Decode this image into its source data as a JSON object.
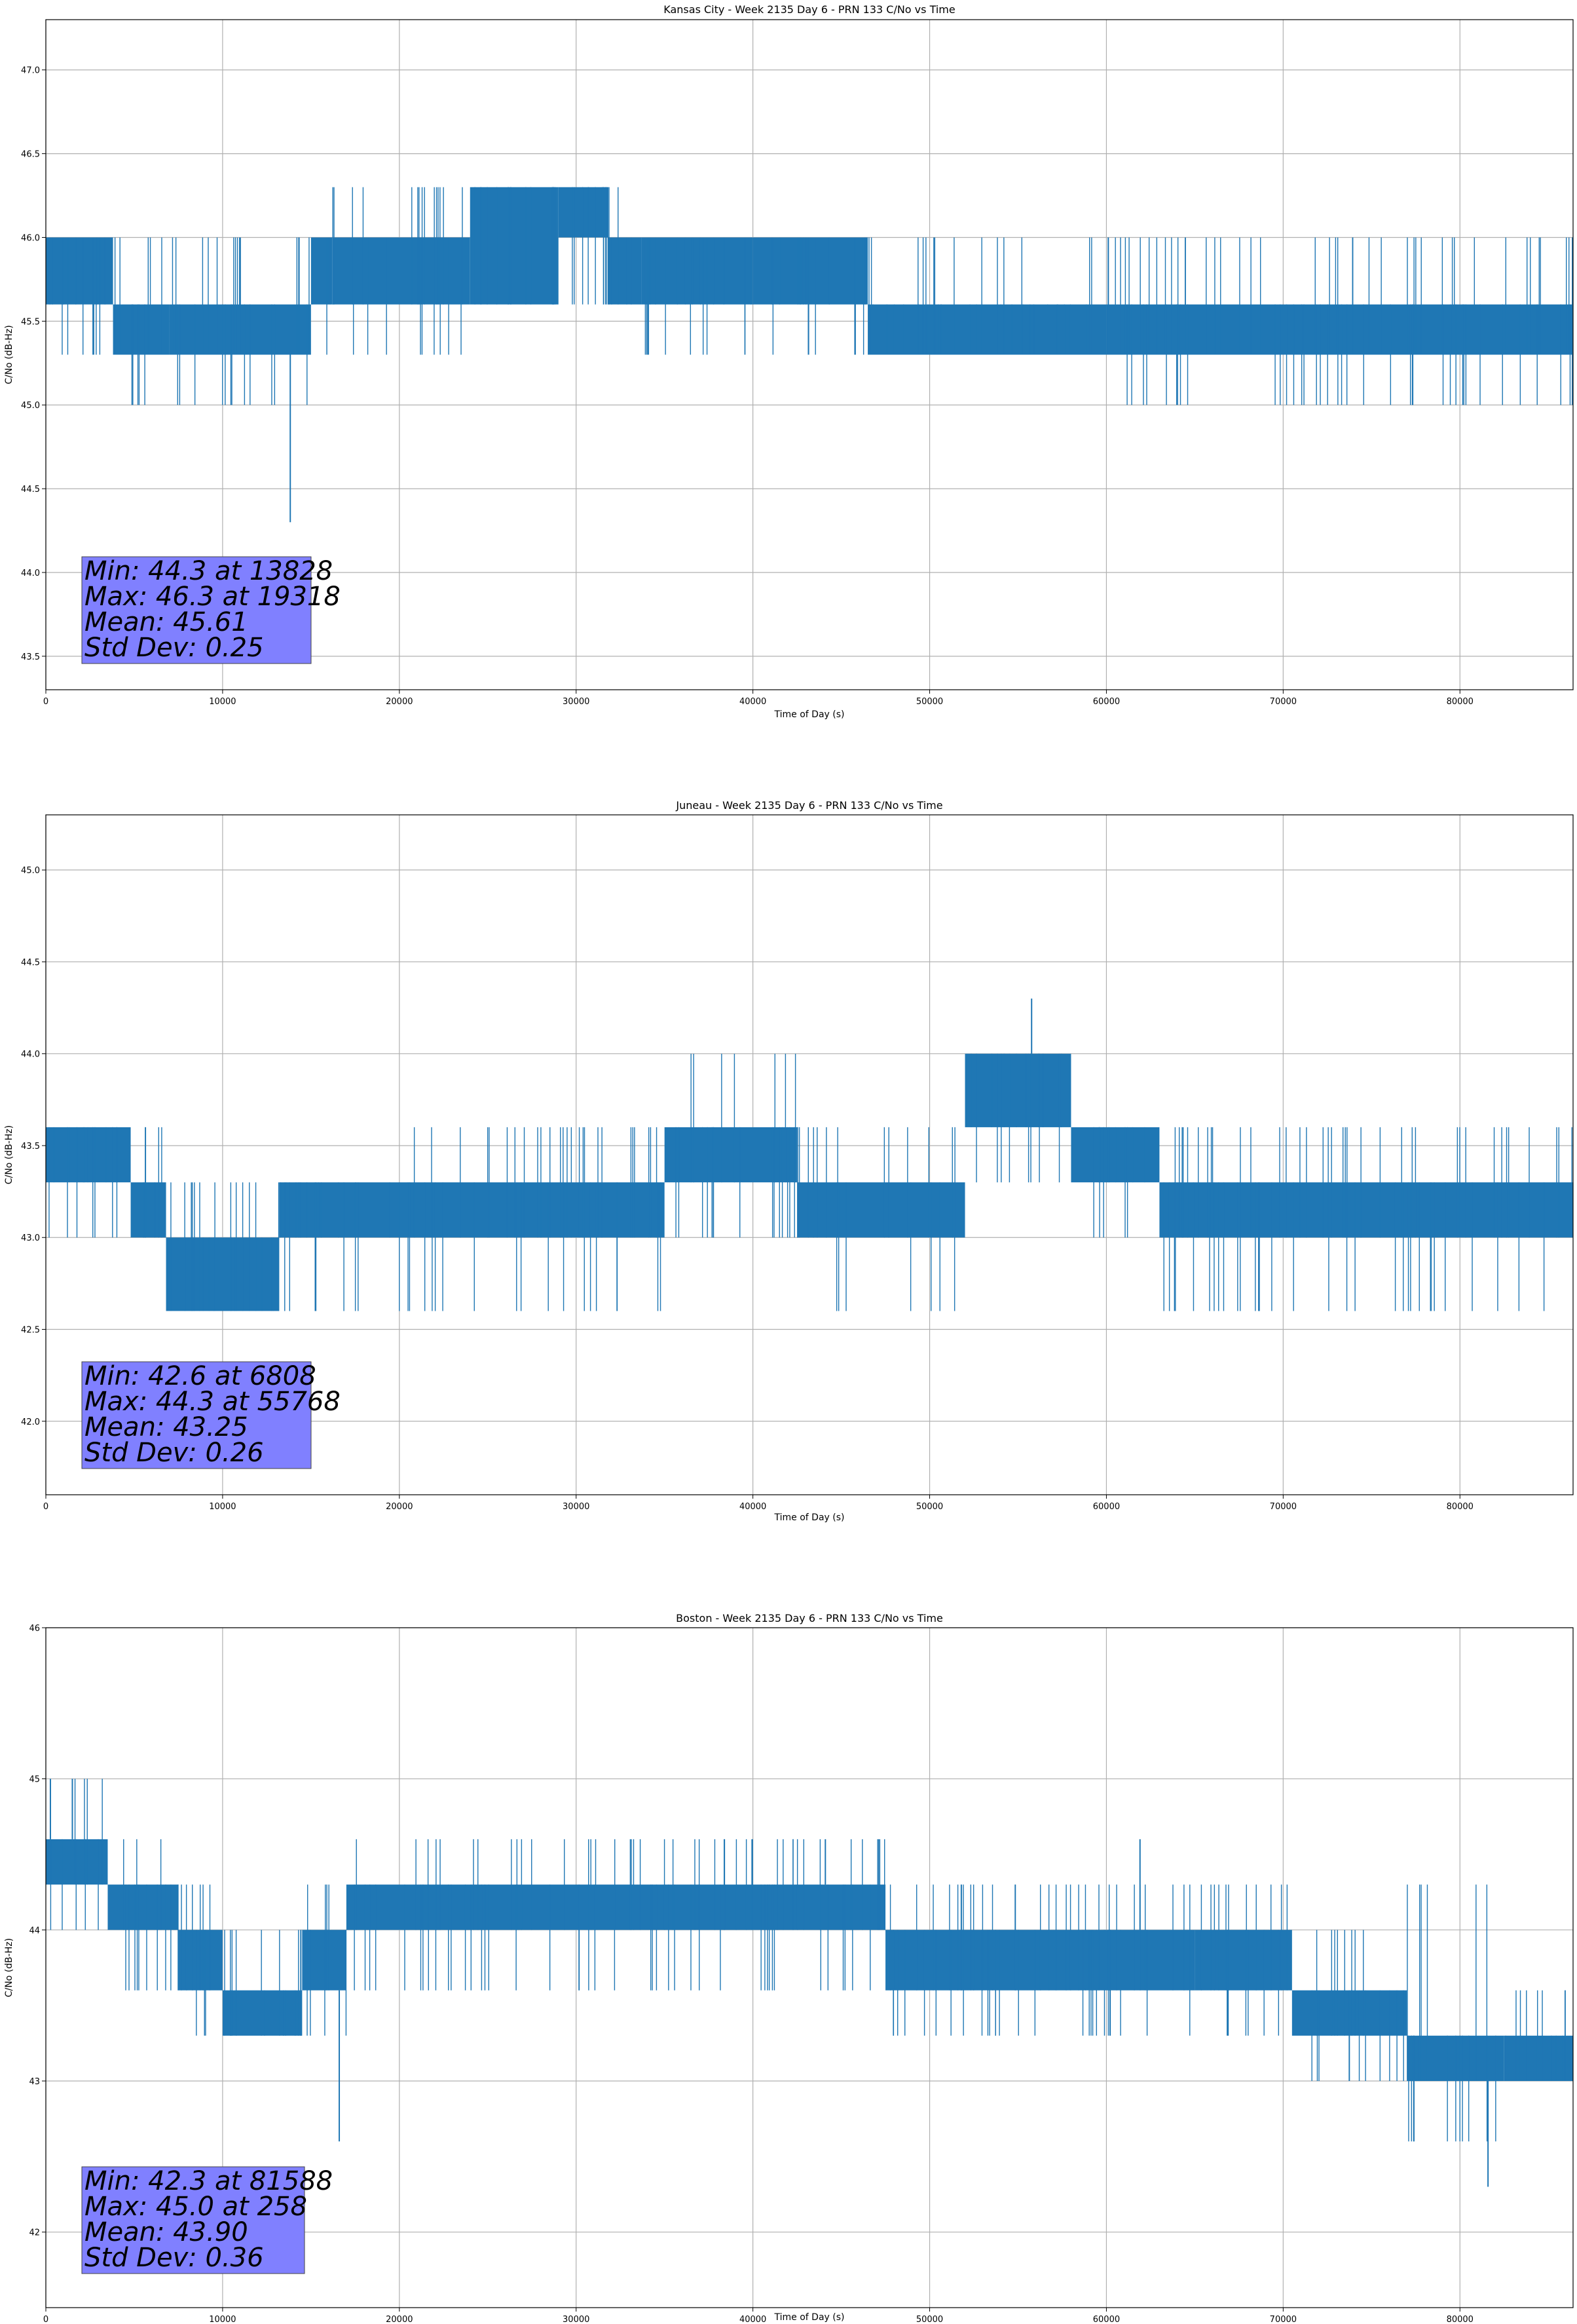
{
  "style": {
    "series_color": "#1f77b4",
    "grid_color": "#b0b0b0",
    "stats_box_color": "#8080ff",
    "background": "#ffffff"
  },
  "chart_data": [
    {
      "type": "line",
      "title": "Kansas City - Week 2135 Day 6 - PRN 133 C/No vs Time",
      "xlabel": "Time of Day (s)",
      "ylabel": "C/No (dB-Hz)",
      "xlim": [
        0,
        86400
      ],
      "ylim": [
        43.3,
        47.3
      ],
      "xticks": [
        0,
        10000,
        20000,
        30000,
        40000,
        50000,
        60000,
        70000,
        80000
      ],
      "yticks": [
        43.5,
        44.0,
        44.5,
        45.0,
        45.5,
        46.0,
        46.5,
        47.0
      ],
      "ytick_labels": [
        "43.5",
        "44.0",
        "44.5",
        "45.0",
        "45.5",
        "46.0",
        "46.5",
        "47.0"
      ],
      "grid": true,
      "stats": [
        "Min: 44.3 at 13828",
        "Max: 46.3 at 19318",
        "Mean: 45.61",
        "Std Dev: 0.25"
      ],
      "series": [
        {
          "quantization": 0.3,
          "segments": [
            {
              "x": [
                0,
                3800
              ],
              "base": [
                45.6,
                46.0
              ],
              "bursts": [
                45.3,
                46.0
              ]
            },
            {
              "x": [
                3800,
                7000
              ],
              "base": [
                45.3,
                45.6
              ],
              "bursts": [
                45.0,
                46.0
              ]
            },
            {
              "x": [
                7000,
                12800
              ],
              "base": [
                45.3,
                45.6
              ],
              "bursts": [
                45.0,
                46.0
              ]
            },
            {
              "x": [
                12800,
                15000
              ],
              "base": [
                45.3,
                45.6
              ],
              "bursts": [
                45.0,
                46.0
              ]
            },
            {
              "x": [
                15000,
                16200
              ],
              "base": [
                45.6,
                46.0
              ],
              "bursts": [
                45.3,
                46.0
              ]
            },
            {
              "x": [
                16200,
                24000
              ],
              "base": [
                45.6,
                46.0
              ],
              "bursts": [
                45.3,
                46.3
              ]
            },
            {
              "x": [
                24000,
                29000
              ],
              "base": [
                45.6,
                46.3
              ],
              "bursts": [
                45.6,
                46.3
              ]
            },
            {
              "x": [
                29000,
                31800
              ],
              "base": [
                46.0,
                46.3
              ],
              "bursts": [
                45.6,
                46.3
              ]
            },
            {
              "x": [
                31800,
                33700
              ],
              "base": [
                45.6,
                46.0
              ],
              "bursts": [
                45.6,
                46.3
              ]
            },
            {
              "x": [
                33700,
                40000
              ],
              "base": [
                45.6,
                46.0
              ],
              "bursts": [
                45.3,
                46.0
              ]
            },
            {
              "x": [
                40000,
                46500
              ],
              "base": [
                45.6,
                46.0
              ],
              "bursts": [
                45.3,
                46.0
              ]
            },
            {
              "x": [
                46500,
                60000
              ],
              "base": [
                45.3,
                45.6
              ],
              "bursts": [
                45.3,
                46.0
              ]
            },
            {
              "x": [
                60000,
                86400
              ],
              "base": [
                45.3,
                45.6
              ],
              "bursts": [
                45.0,
                46.0
              ]
            }
          ],
          "spikes": [
            {
              "x": 13828,
              "y": 44.3
            }
          ]
        }
      ]
    },
    {
      "type": "line",
      "title": "Juneau - Week 2135 Day 6 - PRN 133 C/No vs Time",
      "xlabel": "Time of Day (s)",
      "ylabel": "C/No (dB-Hz)",
      "xlim": [
        0,
        86400
      ],
      "ylim": [
        41.6,
        45.3
      ],
      "xticks": [
        0,
        10000,
        20000,
        30000,
        40000,
        50000,
        60000,
        70000,
        80000
      ],
      "yticks": [
        42.0,
        42.5,
        43.0,
        43.5,
        44.0,
        44.5,
        45.0
      ],
      "ytick_labels": [
        "42.0",
        "42.5",
        "43.0",
        "43.5",
        "44.0",
        "44.5",
        "45.0"
      ],
      "grid": true,
      "stats": [
        "Min: 42.6 at 6808",
        "Max: 44.3 at 55768",
        "Mean: 43.25",
        "Std Dev: 0.26"
      ],
      "series": [
        {
          "quantization": 0.3,
          "segments": [
            {
              "x": [
                0,
                4800
              ],
              "base": [
                43.3,
                43.6
              ],
              "bursts": [
                43.0,
                43.6
              ]
            },
            {
              "x": [
                4800,
                6800
              ],
              "base": [
                43.0,
                43.3
              ],
              "bursts": [
                43.0,
                43.6
              ]
            },
            {
              "x": [
                6800,
                13200
              ],
              "base": [
                42.6,
                43.0
              ],
              "bursts": [
                42.6,
                43.3
              ]
            },
            {
              "x": [
                13200,
                20500
              ],
              "base": [
                43.0,
                43.3
              ],
              "bursts": [
                42.6,
                43.3
              ]
            },
            {
              "x": [
                20500,
                35000
              ],
              "base": [
                43.0,
                43.3
              ],
              "bursts": [
                42.6,
                43.6
              ]
            },
            {
              "x": [
                35000,
                42500
              ],
              "base": [
                43.3,
                43.6
              ],
              "bursts": [
                43.0,
                44.0
              ]
            },
            {
              "x": [
                42500,
                52000
              ],
              "base": [
                43.0,
                43.3
              ],
              "bursts": [
                42.6,
                43.6
              ]
            },
            {
              "x": [
                52000,
                58000
              ],
              "base": [
                43.6,
                44.0
              ],
              "bursts": [
                43.3,
                44.0
              ]
            },
            {
              "x": [
                58000,
                63000
              ],
              "base": [
                43.3,
                43.6
              ],
              "bursts": [
                43.0,
                43.6
              ]
            },
            {
              "x": [
                63000,
                86400
              ],
              "base": [
                43.0,
                43.3
              ],
              "bursts": [
                42.6,
                43.6
              ]
            }
          ],
          "spikes": [
            {
              "x": 55768,
              "y": 44.3
            }
          ]
        }
      ]
    },
    {
      "type": "line",
      "title": "Boston - Week 2135 Day 6 - PRN 133 C/No vs Time",
      "xlabel": "Time of Day (s)",
      "ylabel": "C/No (dB-Hz)",
      "xlim": [
        0,
        86400
      ],
      "ylim": [
        41.5,
        46.0
      ],
      "xticks": [
        0,
        10000,
        20000,
        30000,
        40000,
        50000,
        60000,
        70000,
        80000
      ],
      "yticks": [
        42,
        43,
        44,
        45,
        46
      ],
      "ytick_labels": [
        "42",
        "43",
        "44",
        "45",
        "46"
      ],
      "grid": true,
      "stats": [
        "Min: 42.3 at 81588",
        "Max: 45.0 at 258",
        "Mean: 43.90",
        "Std Dev: 0.36"
      ],
      "series": [
        {
          "quantization": 0.3,
          "segments": [
            {
              "x": [
                0,
                3500
              ],
              "base": [
                44.3,
                44.6
              ],
              "bursts": [
                44.0,
                45.0
              ]
            },
            {
              "x": [
                3500,
                7500
              ],
              "base": [
                44.0,
                44.3
              ],
              "bursts": [
                43.6,
                44.6
              ]
            },
            {
              "x": [
                7500,
                10000
              ],
              "base": [
                43.6,
                44.0
              ],
              "bursts": [
                43.3,
                44.3
              ]
            },
            {
              "x": [
                10000,
                14500
              ],
              "base": [
                43.3,
                43.6
              ],
              "bursts": [
                43.3,
                44.0
              ]
            },
            {
              "x": [
                14500,
                17000
              ],
              "base": [
                43.6,
                44.0
              ],
              "bursts": [
                43.3,
                44.3
              ]
            },
            {
              "x": [
                17000,
                47500
              ],
              "base": [
                44.0,
                44.3
              ],
              "bursts": [
                43.6,
                44.6
              ]
            },
            {
              "x": [
                47500,
                65000
              ],
              "base": [
                43.6,
                44.0
              ],
              "bursts": [
                43.3,
                44.3
              ]
            },
            {
              "x": [
                65000,
                70500
              ],
              "base": [
                43.6,
                44.0
              ],
              "bursts": [
                43.3,
                44.3
              ]
            },
            {
              "x": [
                70500,
                77000
              ],
              "base": [
                43.3,
                43.6
              ],
              "bursts": [
                43.0,
                44.0
              ]
            },
            {
              "x": [
                77000,
                82500
              ],
              "base": [
                43.0,
                43.3
              ],
              "bursts": [
                42.6,
                44.3
              ]
            },
            {
              "x": [
                82500,
                86400
              ],
              "base": [
                43.0,
                43.3
              ],
              "bursts": [
                43.0,
                43.6
              ]
            }
          ],
          "spikes": [
            {
              "x": 258,
              "y": 45.0
            },
            {
              "x": 1500,
              "y": 45.0
            },
            {
              "x": 16600,
              "y": 42.6
            },
            {
              "x": 44100,
              "y": 44.6
            },
            {
              "x": 61900,
              "y": 44.6
            },
            {
              "x": 81588,
              "y": 42.3
            }
          ]
        }
      ]
    }
  ]
}
